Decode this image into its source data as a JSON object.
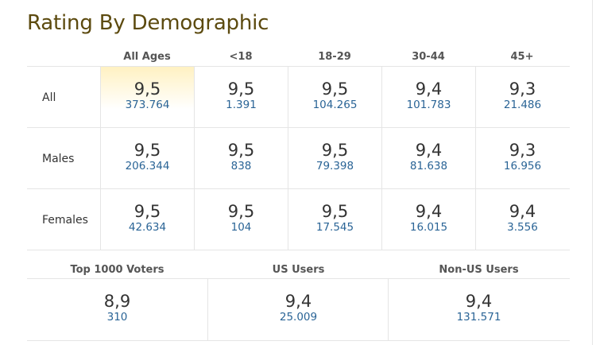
{
  "title": "Rating By Demographic",
  "columns": [
    "All Ages",
    "<18",
    "18-29",
    "30-44",
    "45+"
  ],
  "rows": [
    {
      "label": "All",
      "cells": [
        {
          "rating": "9,5",
          "votes": "373.764"
        },
        {
          "rating": "9,5",
          "votes": "1.391"
        },
        {
          "rating": "9,5",
          "votes": "104.265"
        },
        {
          "rating": "9,4",
          "votes": "101.783"
        },
        {
          "rating": "9,3",
          "votes": "21.486"
        }
      ]
    },
    {
      "label": "Males",
      "cells": [
        {
          "rating": "9,5",
          "votes": "206.344"
        },
        {
          "rating": "9,5",
          "votes": "838"
        },
        {
          "rating": "9,5",
          "votes": "79.398"
        },
        {
          "rating": "9,4",
          "votes": "81.638"
        },
        {
          "rating": "9,3",
          "votes": "16.956"
        }
      ]
    },
    {
      "label": "Females",
      "cells": [
        {
          "rating": "9,5",
          "votes": "42.634"
        },
        {
          "rating": "9,5",
          "votes": "104"
        },
        {
          "rating": "9,5",
          "votes": "17.545"
        },
        {
          "rating": "9,4",
          "votes": "16.015"
        },
        {
          "rating": "9,4",
          "votes": "3.556"
        }
      ]
    }
  ],
  "voter_groups": {
    "columns": [
      "Top 1000 Voters",
      "US Users",
      "Non-US Users"
    ],
    "cells": [
      {
        "rating": "8,9",
        "votes": "310"
      },
      {
        "rating": "9,4",
        "votes": "25.009"
      },
      {
        "rating": "9,4",
        "votes": "131.571"
      }
    ]
  },
  "colors": {
    "title": "#5c4a0f",
    "votes_link": "#2a6496",
    "highlight": "#fff1c2",
    "border": "#e5e5e5"
  }
}
